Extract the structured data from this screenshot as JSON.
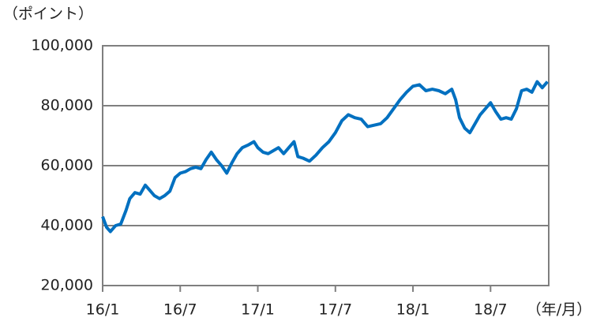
{
  "chart_data": {
    "type": "line",
    "y_axis_label": "（ポイント）",
    "x_axis_label": "（年/月）",
    "color": "#0070c0",
    "grid": true,
    "xlim": [
      0,
      34.5
    ],
    "xticks": [
      {
        "value": 0,
        "label": "16/1"
      },
      {
        "value": 6,
        "label": "16/7"
      },
      {
        "value": 12,
        "label": "17/1"
      },
      {
        "value": 18,
        "label": "17/7"
      },
      {
        "value": 24,
        "label": "18/1"
      },
      {
        "value": 30,
        "label": "18/7"
      }
    ],
    "ylim": [
      20000,
      100000
    ],
    "yticks": [
      {
        "value": 20000,
        "label": "20,000"
      },
      {
        "value": 40000,
        "label": "40,000"
      },
      {
        "value": 60000,
        "label": "60,000"
      },
      {
        "value": 80000,
        "label": "80,000"
      },
      {
        "value": 100000,
        "label": "100,000"
      }
    ],
    "x": [
      0,
      0.3,
      0.6,
      1.0,
      1.4,
      1.8,
      2.1,
      2.5,
      2.9,
      3.3,
      3.6,
      4.0,
      4.4,
      4.8,
      5.2,
      5.6,
      6.0,
      6.4,
      6.8,
      7.2,
      7.6,
      8.0,
      8.4,
      8.8,
      9.2,
      9.6,
      10.0,
      10.4,
      10.8,
      11.3,
      11.7,
      12.0,
      12.4,
      12.8,
      13.2,
      13.6,
      14.0,
      14.4,
      14.8,
      15.1,
      15.5,
      16.0,
      16.5,
      17.0,
      17.5,
      18.0,
      18.5,
      19.0,
      19.5,
      20.0,
      20.5,
      21.0,
      21.5,
      22.0,
      22.5,
      23.0,
      23.5,
      24.0,
      24.5,
      25.0,
      25.5,
      26.0,
      26.5,
      27.0,
      27.3,
      27.6,
      28.0,
      28.4,
      28.8,
      29.2,
      29.6,
      30.0,
      30.4,
      30.8,
      31.2,
      31.6,
      32.0,
      32.4,
      32.8,
      33.2,
      33.6,
      34.0,
      34.4
    ],
    "values": [
      43000,
      39500,
      38000,
      40000,
      40500,
      45000,
      49000,
      51000,
      50500,
      53500,
      52000,
      50000,
      49000,
      50000,
      51500,
      56000,
      57500,
      58000,
      59000,
      59500,
      59000,
      62000,
      64500,
      62000,
      60000,
      57500,
      61000,
      64000,
      66000,
      67000,
      68000,
      66000,
      64500,
      64000,
      65000,
      66000,
      64000,
      66000,
      68000,
      63000,
      62500,
      61500,
      63500,
      66000,
      68000,
      71000,
      75000,
      77000,
      76000,
      75500,
      73000,
      73500,
      74000,
      76000,
      79000,
      82000,
      84500,
      86500,
      87000,
      85000,
      85500,
      85000,
      84000,
      85500,
      82000,
      76000,
      72500,
      71000,
      74000,
      77000,
      79000,
      81000,
      78000,
      75500,
      76000,
      75500,
      79000,
      85000,
      85500,
      84500,
      88000,
      86000,
      88000
    ]
  }
}
